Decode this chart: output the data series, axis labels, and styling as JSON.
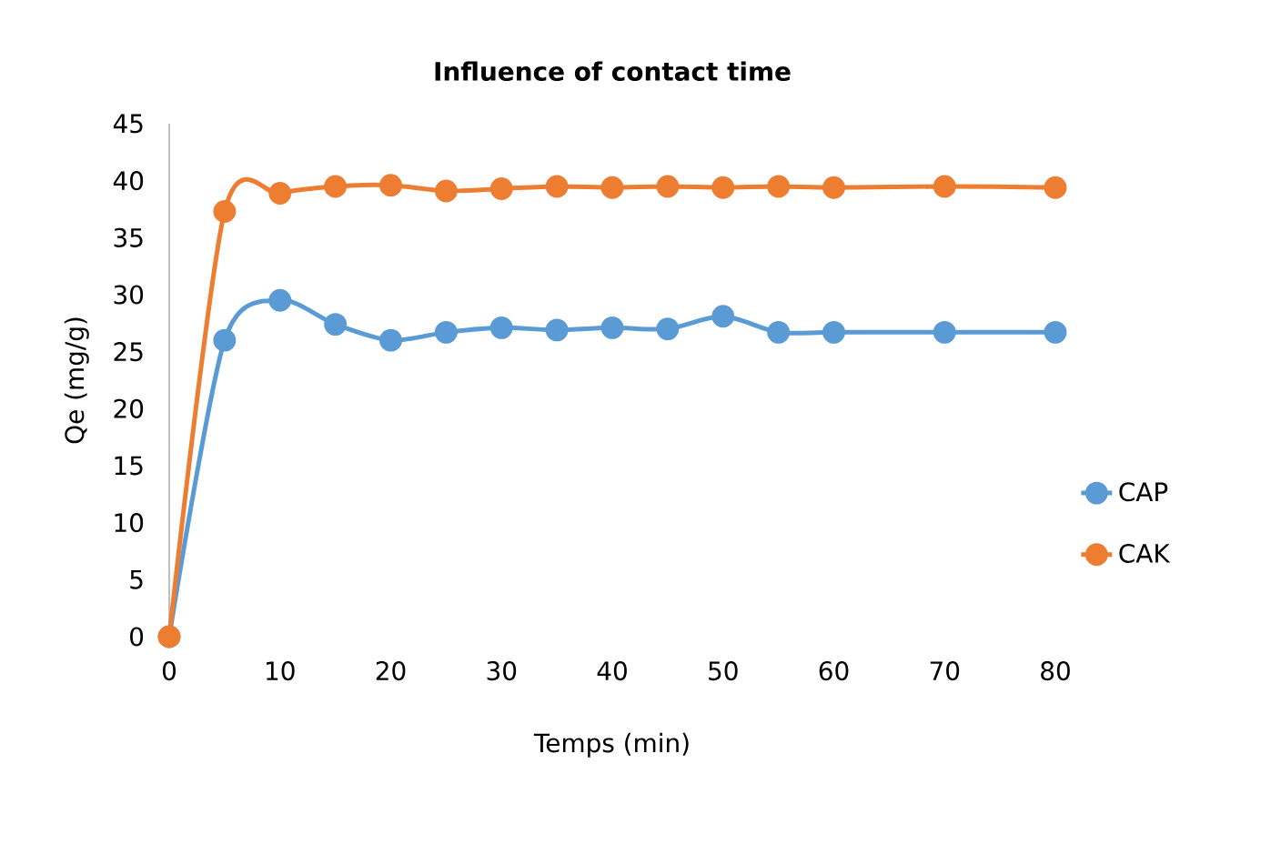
{
  "chart_data": {
    "type": "line",
    "title": "Influence of contact time",
    "xlabel": "Temps (min)",
    "ylabel": "Qe (mg/g)",
    "x": [
      0,
      5,
      10,
      15,
      20,
      25,
      30,
      35,
      40,
      45,
      50,
      55,
      60,
      70,
      80
    ],
    "series": [
      {
        "name": "CAP",
        "color": "#5b9bd5",
        "values": [
          0,
          26,
          29.5,
          27.4,
          26,
          26.7,
          27.1,
          26.9,
          27.1,
          27,
          28.1,
          26.7,
          26.7,
          26.7,
          26.7
        ]
      },
      {
        "name": "CAK",
        "color": "#ed7d31",
        "values": [
          0,
          37.3,
          38.9,
          39.5,
          39.6,
          39.1,
          39.3,
          39.5,
          39.4,
          39.5,
          39.4,
          39.5,
          39.4,
          39.5,
          39.4
        ]
      }
    ],
    "xlim": [
      0,
      80
    ],
    "xticks": [
      0,
      10,
      20,
      30,
      40,
      50,
      60,
      70,
      80
    ],
    "ylim": [
      0,
      45
    ],
    "yticks": [
      0,
      5,
      10,
      15,
      20,
      25,
      30,
      35,
      40,
      45
    ],
    "grid": false,
    "legend": "right",
    "marker": "circle",
    "line_style": "solid"
  }
}
